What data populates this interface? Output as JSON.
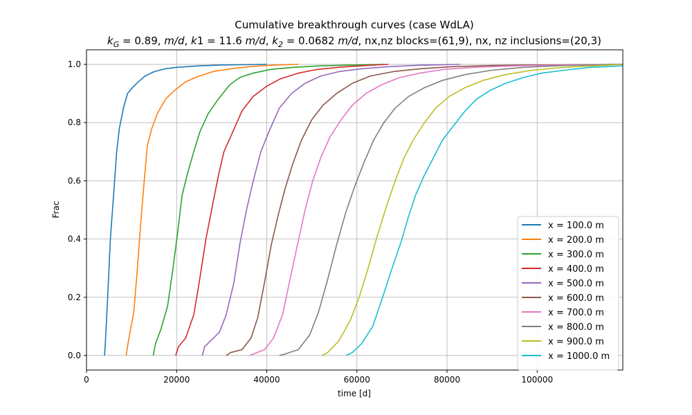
{
  "chart_data": {
    "type": "line",
    "title": "Cumulative breakthrough curves (case WdLA)",
    "subtitle_parts": [
      {
        "text": "k",
        "style": "italic"
      },
      {
        "text": "G",
        "style": "italic-sub"
      },
      {
        "text": " = 0.89, ",
        "style": "normal"
      },
      {
        "text": "m/d",
        "style": "italic"
      },
      {
        "text": ", ",
        "style": "normal"
      },
      {
        "text": "k",
        "style": "italic"
      },
      {
        "text": "1 = 11.6 ",
        "style": "normal"
      },
      {
        "text": "m/d",
        "style": "italic"
      },
      {
        "text": ", ",
        "style": "normal"
      },
      {
        "text": "k",
        "style": "italic"
      },
      {
        "text": "2",
        "style": "italic-sub"
      },
      {
        "text": " = 0.0682 ",
        "style": "normal"
      },
      {
        "text": "m/d",
        "style": "italic"
      },
      {
        "text": ", nx,nz blocks=(61,9), nx, nz inclusions=(20,3)",
        "style": "normal"
      }
    ],
    "xlabel": "time [d]",
    "ylabel": "Frac",
    "xlim": [
      0,
      119000
    ],
    "ylim": [
      -0.05,
      1.05
    ],
    "xticks": [
      0,
      20000,
      40000,
      60000,
      80000,
      100000
    ],
    "yticks": [
      0.0,
      0.2,
      0.4,
      0.6,
      0.8,
      1.0
    ],
    "xtick_labels": [
      "0",
      "20000",
      "40000",
      "60000",
      "80000",
      "100000"
    ],
    "ytick_labels": [
      "0.0",
      "0.2",
      "0.4",
      "0.6",
      "0.8",
      "1.0"
    ],
    "grid": true,
    "legend_position": "lower-right",
    "series": [
      {
        "name": "x = 100.0 m",
        "color": "#1f77b4",
        "x": [
          4000,
          4200,
          4700,
          5300,
          6000,
          6700,
          7300,
          8200,
          9100,
          10200,
          11500,
          13000,
          15000,
          17500,
          20000,
          25000,
          30000,
          35000,
          40000
        ],
        "y": [
          0.0,
          0.05,
          0.2,
          0.4,
          0.55,
          0.7,
          0.78,
          0.85,
          0.9,
          0.92,
          0.94,
          0.96,
          0.975,
          0.985,
          0.99,
          0.995,
          0.998,
          0.999,
          1.0
        ]
      },
      {
        "name": "x = 200.0 m",
        "color": "#ff7f0e",
        "x": [
          8800,
          9300,
          10500,
          11300,
          12000,
          12800,
          13500,
          14500,
          15700,
          17500,
          19500,
          22000,
          25000,
          28000,
          32000,
          36000,
          41000,
          47000
        ],
        "y": [
          0.0,
          0.05,
          0.15,
          0.3,
          0.45,
          0.6,
          0.72,
          0.78,
          0.83,
          0.88,
          0.91,
          0.94,
          0.96,
          0.975,
          0.985,
          0.992,
          0.997,
          1.0
        ]
      },
      {
        "name": "x = 300.0 m",
        "color": "#2ca02c",
        "x": [
          14800,
          15300,
          16500,
          18000,
          19200,
          20200,
          21200,
          22500,
          23800,
          25200,
          27000,
          29200,
          31800,
          34000,
          37000,
          41000,
          46000,
          52000,
          60000,
          66000
        ],
        "y": [
          0.0,
          0.04,
          0.09,
          0.17,
          0.3,
          0.42,
          0.55,
          0.63,
          0.7,
          0.77,
          0.83,
          0.88,
          0.93,
          0.955,
          0.97,
          0.983,
          0.99,
          0.995,
          0.998,
          1.0
        ]
      },
      {
        "name": "x = 400.0 m",
        "color": "#d62728",
        "x": [
          19800,
          20400,
          22000,
          23800,
          25000,
          26500,
          28000,
          29300,
          30500,
          32500,
          34500,
          37000,
          40000,
          43000,
          47000,
          51000,
          56000,
          62000,
          67000
        ],
        "y": [
          0.0,
          0.03,
          0.06,
          0.14,
          0.25,
          0.4,
          0.52,
          0.62,
          0.7,
          0.77,
          0.84,
          0.89,
          0.925,
          0.95,
          0.97,
          0.982,
          0.99,
          0.996,
          1.0
        ]
      },
      {
        "name": "x = 500.0 m",
        "color": "#9467bd",
        "x": [
          25700,
          26200,
          27500,
          29500,
          31000,
          32700,
          34000,
          35500,
          37000,
          38700,
          40500,
          42800,
          45500,
          48500,
          52000,
          56000,
          61000,
          67000,
          74000,
          83000
        ],
        "y": [
          0.0,
          0.03,
          0.05,
          0.08,
          0.14,
          0.25,
          0.38,
          0.5,
          0.6,
          0.7,
          0.77,
          0.85,
          0.9,
          0.935,
          0.96,
          0.975,
          0.985,
          0.992,
          0.997,
          1.0
        ]
      },
      {
        "name": "x = 600.0 m",
        "color": "#8c564b",
        "x": [
          31000,
          32000,
          34500,
          36500,
          38000,
          39500,
          41000,
          42500,
          44000,
          45800,
          47700,
          50000,
          52500,
          55500,
          59000,
          63000,
          68000,
          74000,
          81000,
          90000,
          100000,
          119000
        ],
        "y": [
          0.0,
          0.01,
          0.02,
          0.06,
          0.13,
          0.25,
          0.38,
          0.48,
          0.57,
          0.66,
          0.74,
          0.81,
          0.86,
          0.9,
          0.935,
          0.96,
          0.975,
          0.985,
          0.992,
          0.996,
          0.998,
          1.0
        ]
      },
      {
        "name": "x = 700.0 m",
        "color": "#e377c2",
        "x": [
          36200,
          37000,
          39500,
          41500,
          43500,
          45000,
          46800,
          48500,
          50200,
          52000,
          54000,
          56500,
          59000,
          62000,
          65500,
          69500,
          74000,
          79500,
          86000,
          95000,
          105000,
          119000
        ],
        "y": [
          0.0,
          0.005,
          0.02,
          0.06,
          0.14,
          0.25,
          0.38,
          0.5,
          0.6,
          0.68,
          0.75,
          0.81,
          0.86,
          0.9,
          0.93,
          0.955,
          0.97,
          0.983,
          0.99,
          0.995,
          0.998,
          1.0
        ]
      },
      {
        "name": "x = 800.0 m",
        "color": "#7f7f7f",
        "x": [
          42800,
          44000,
          47000,
          49500,
          51500,
          53500,
          55500,
          57500,
          59500,
          61500,
          63700,
          66000,
          68500,
          71500,
          75000,
          79000,
          84000,
          90000,
          97000,
          106000,
          119000
        ],
        "y": [
          0.0,
          0.005,
          0.02,
          0.07,
          0.15,
          0.26,
          0.38,
          0.49,
          0.58,
          0.66,
          0.74,
          0.8,
          0.85,
          0.89,
          0.92,
          0.945,
          0.965,
          0.98,
          0.99,
          0.996,
          1.0
        ]
      },
      {
        "name": "x = 900.0 m",
        "color": "#bcbd22",
        "x": [
          52300,
          53500,
          56000,
          58500,
          60500,
          62500,
          64500,
          66500,
          68500,
          70500,
          72500,
          75000,
          77500,
          80500,
          84000,
          88000,
          93000,
          99000,
          106000,
          114000,
          119000
        ],
        "y": [
          0.0,
          0.01,
          0.05,
          0.12,
          0.2,
          0.3,
          0.41,
          0.51,
          0.6,
          0.68,
          0.74,
          0.8,
          0.85,
          0.89,
          0.92,
          0.945,
          0.965,
          0.98,
          0.99,
          0.996,
          1.0
        ]
      },
      {
        "name": "x = 1000.0 m",
        "color": "#17becf",
        "x": [
          57600,
          59000,
          61000,
          63500,
          65700,
          67800,
          69800,
          71500,
          73000,
          75000,
          77000,
          79000,
          81500,
          84000,
          86500,
          89500,
          93000,
          97000,
          101000,
          106000,
          112000,
          119000
        ],
        "y": [
          0.0,
          0.01,
          0.04,
          0.1,
          0.2,
          0.3,
          0.39,
          0.48,
          0.55,
          0.62,
          0.68,
          0.74,
          0.79,
          0.84,
          0.88,
          0.91,
          0.935,
          0.955,
          0.97,
          0.98,
          0.99,
          0.995
        ]
      }
    ]
  }
}
